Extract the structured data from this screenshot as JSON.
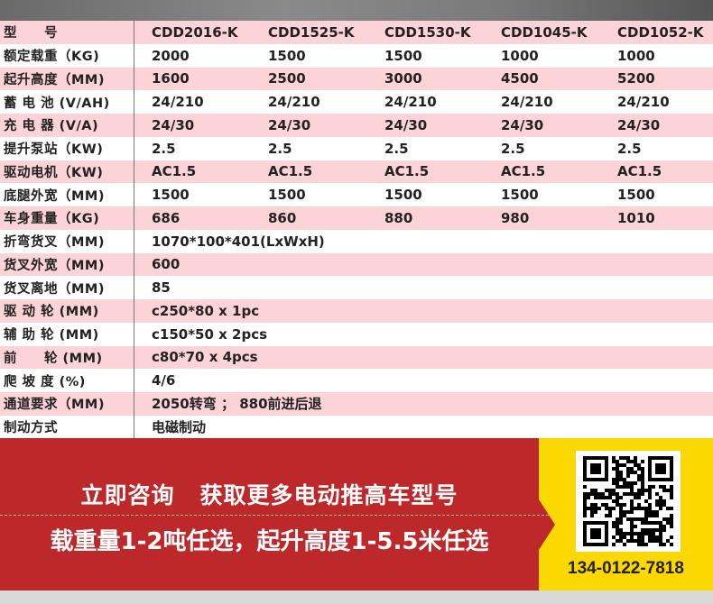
{
  "table": {
    "header": {
      "label": "型　　号",
      "models": [
        "CDD2016-K",
        "CDD1525-K",
        "CDD1530-K",
        "CDD1045-K",
        "CDD1052-K"
      ]
    },
    "rows": [
      {
        "label": "额定载重（KG)",
        "values": [
          "2000",
          "1500",
          "1500",
          "1000",
          "1000"
        ]
      },
      {
        "label": "起升高度（MM)",
        "values": [
          "1600",
          "2500",
          "3000",
          "4500",
          "5200"
        ]
      },
      {
        "label": "蓄 电 池 (V/AH)",
        "values": [
          "24/210",
          "24/210",
          "24/210",
          "24/210",
          "24/210"
        ]
      },
      {
        "label": "充 电 器 (V/A)",
        "values": [
          "24/30",
          "24/30",
          "24/30",
          "24/30",
          "24/30"
        ]
      },
      {
        "label": "提升泵站（KW)",
        "values": [
          "2.5",
          "2.5",
          "2.5",
          "2.5",
          "2.5"
        ]
      },
      {
        "label": "驱动电机（KW)",
        "values": [
          "AC1.5",
          "AC1.5",
          "AC1.5",
          "AC1.5",
          "AC1.5"
        ]
      },
      {
        "label": "底腿外宽（MM)",
        "values": [
          "1500",
          "1500",
          "1500",
          "1500",
          "1500"
        ]
      },
      {
        "label": "车身重量（KG)",
        "values": [
          "686",
          "860",
          "880",
          "980",
          "1010"
        ]
      },
      {
        "label": "折弯货叉（MM)",
        "values": [
          "1070*100*401(LxWxH)"
        ]
      },
      {
        "label": "货叉外宽（MM)",
        "values": [
          "600"
        ]
      },
      {
        "label": "货叉离地（MM)",
        "values": [
          "85"
        ]
      },
      {
        "label": "驱 动 轮 (MM)",
        "values": [
          "c250*80 x 1pc"
        ]
      },
      {
        "label": "辅 助 轮 (MM)",
        "values": [
          "c150*50 x 2pcs"
        ]
      },
      {
        "label": "前　　轮 (MM)",
        "values": [
          "c80*70 x 4pcs"
        ]
      },
      {
        "label": "爬 坡 度 (%)",
        "values": [
          "4/6"
        ]
      },
      {
        "label": "通道要求（MM)",
        "values": [
          "2050转弯 ； 880前进后退"
        ]
      },
      {
        "label": "制动方式",
        "values": [
          "电磁制动"
        ]
      }
    ]
  },
  "banner": {
    "line1a": "立即咨询",
    "line1b": "获取更多电动推高车型号",
    "line2": "载重量1-2吨任选，起升高度1-5.5米任选",
    "phone": "134-0122-7818",
    "qr_icon": "qr-code",
    "colors": {
      "red": "#bd282b",
      "yellow": "#fbd800",
      "pink": "#fcd3d6"
    }
  }
}
